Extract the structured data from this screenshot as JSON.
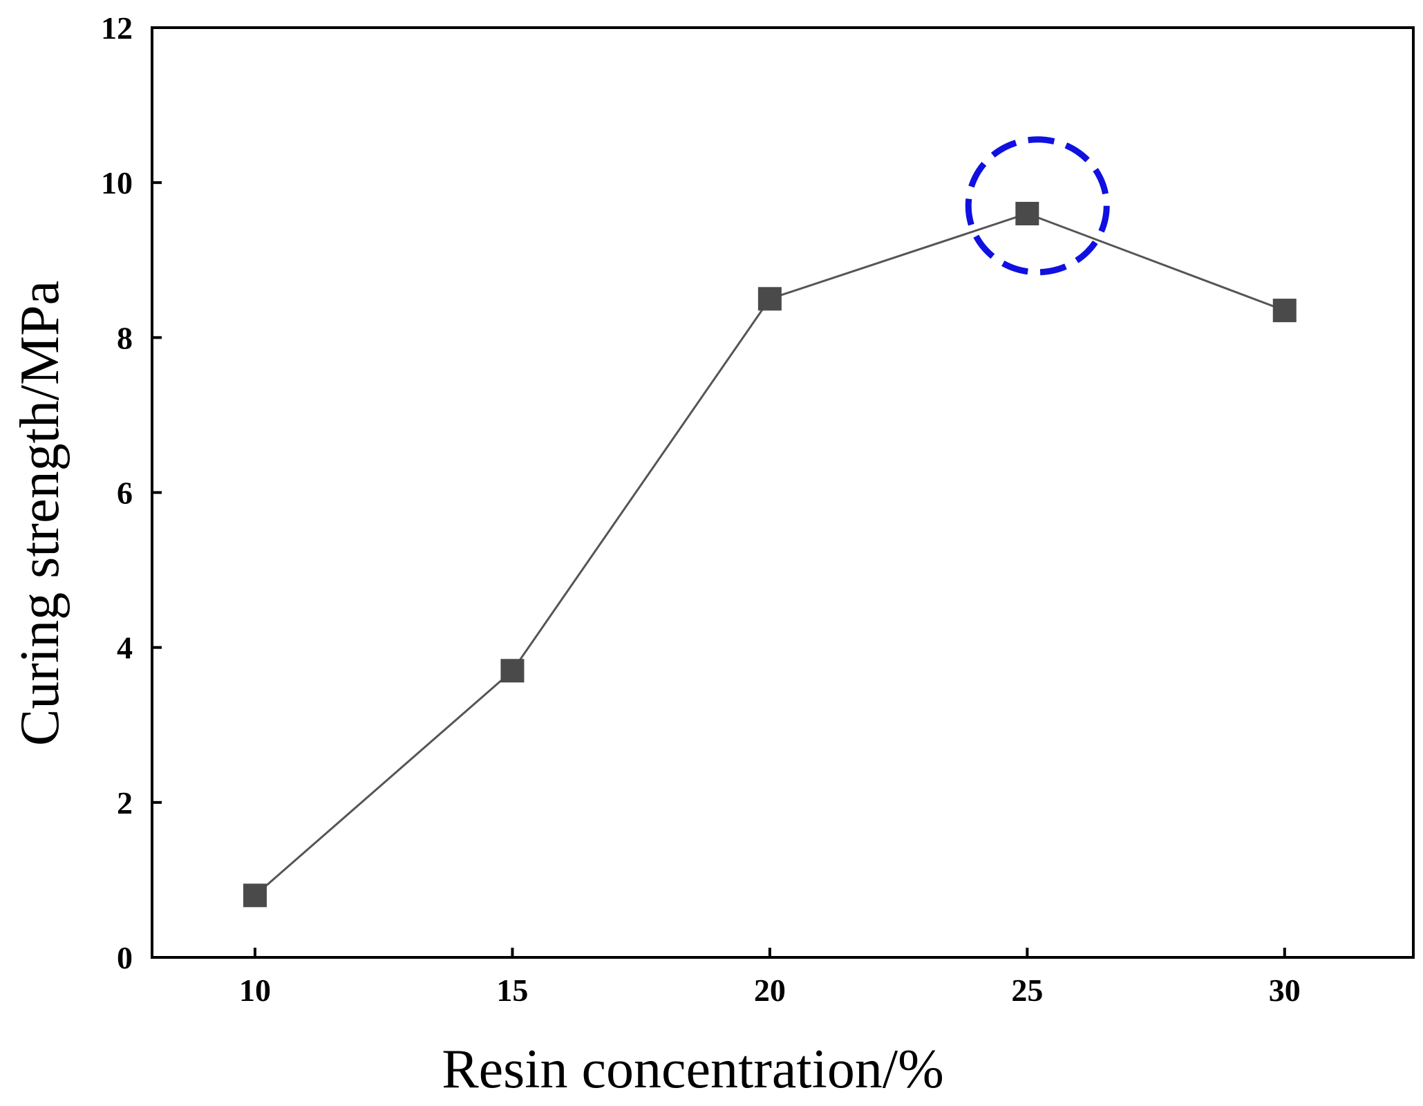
{
  "chart_data": {
    "type": "line",
    "title": "",
    "xlabel": "Resin concentration/%",
    "ylabel": "Curing strength/MPa",
    "x": [
      10,
      15,
      20,
      25,
      30
    ],
    "y": [
      0.8,
      3.7,
      8.5,
      9.6,
      8.35
    ],
    "xlim": [
      8,
      32.5
    ],
    "ylim": [
      0,
      12
    ],
    "xticks": [
      10,
      15,
      20,
      25,
      30
    ],
    "yticks": [
      0,
      2,
      4,
      6,
      8,
      10,
      12
    ],
    "grid": false,
    "legend": "none",
    "marker": "square",
    "line_color": "#555555",
    "marker_color": "#4a4a4a",
    "highlight": {
      "x": 25.2,
      "y": 9.7,
      "shape": "dashed-circle",
      "color": "#1010e0"
    }
  }
}
